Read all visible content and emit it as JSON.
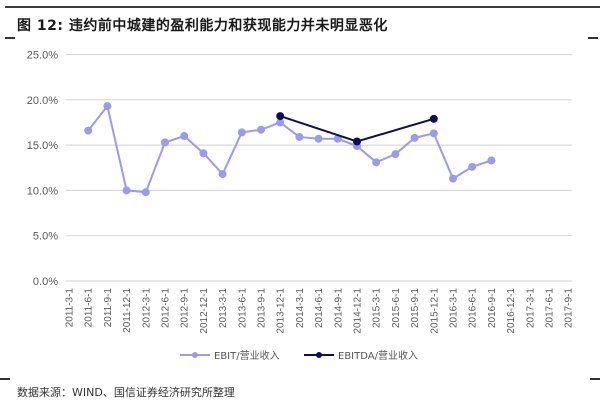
{
  "header": {
    "title": "图 12:  违约前中城建的盈利能力和获现能力并未明显恶化"
  },
  "footer": {
    "source": "数据来源：WIND、国信证券经济研究所整理"
  },
  "colors": {
    "ebit": "#9a9aee",
    "ebitda": "#0d0d5c",
    "grid": "#d9d9d9",
    "rule": "#3a3a3a"
  },
  "chart_data": {
    "type": "line",
    "title": "违约前中城建的盈利能力和获现能力并未明显恶化",
    "xlabel": "",
    "ylabel": "",
    "ylim": [
      0,
      25
    ],
    "yticks": [
      "0.0%",
      "5.0%",
      "10.0%",
      "15.0%",
      "20.0%",
      "25.0%"
    ],
    "grid": true,
    "legend_position": "bottom",
    "categories": [
      "2011-3-1",
      "2011-6-1",
      "2011-9-1",
      "2011-12-1",
      "2012-3-1",
      "2012-6-1",
      "2012-9-1",
      "2012-12-1",
      "2013-3-1",
      "2013-6-1",
      "2013-9-1",
      "2013-12-1",
      "2014-3-1",
      "2014-6-1",
      "2014-9-1",
      "2014-12-1",
      "2015-3-1",
      "2015-6-1",
      "2015-9-1",
      "2015-12-1",
      "2016-3-1",
      "2016-6-1",
      "2016-9-1",
      "2016-12-1",
      "2017-3-1",
      "2017-6-1",
      "2017-9-1"
    ],
    "series": [
      {
        "name": "EBIT/营业收入",
        "values": [
          null,
          16.6,
          19.3,
          10.0,
          9.8,
          15.3,
          16.0,
          14.1,
          11.8,
          16.4,
          16.7,
          17.5,
          15.9,
          15.7,
          15.7,
          14.9,
          13.1,
          14.0,
          15.8,
          16.3,
          11.3,
          12.6,
          13.3,
          null,
          null,
          null,
          null
        ]
      },
      {
        "name": "EBITDA/营业收入",
        "values": [
          null,
          null,
          null,
          null,
          null,
          null,
          null,
          null,
          null,
          null,
          null,
          18.2,
          null,
          null,
          null,
          15.4,
          null,
          null,
          null,
          17.9,
          null,
          null,
          null,
          null,
          null,
          null,
          null
        ]
      }
    ]
  }
}
